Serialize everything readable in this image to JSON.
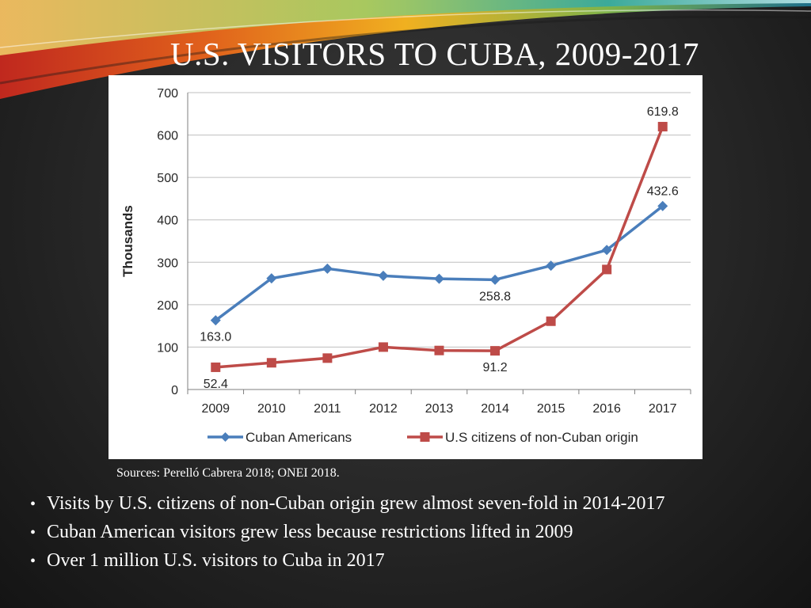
{
  "slide": {
    "title": "U.S. VISITORS TO CUBA, 2009-2017",
    "source": "Sources: Perelló Cabrera 2018; ONEI 2018.",
    "bullet_symbol": "•",
    "bullets": [
      "Visits by U.S. citizens of non-Cuban origin grew almost seven-fold in 2014-2017",
      "Cuban American visitors grew less because restrictions lifted in 2009",
      "Over 1 million U.S. visitors to Cuba in 2017"
    ]
  },
  "chart_data": {
    "type": "line",
    "title": "",
    "xlabel": "",
    "ylabel": "Thousands",
    "ylim": [
      0,
      700
    ],
    "yticks": [
      "0",
      "100",
      "200",
      "300",
      "400",
      "500",
      "600",
      "700"
    ],
    "categories": [
      "2009",
      "2010",
      "2011",
      "2012",
      "2013",
      "2014",
      "2015",
      "2016",
      "2017"
    ],
    "grid": true,
    "legend_position": "bottom",
    "series": [
      {
        "name": "Cuban Americans",
        "color": "#4a7ebb",
        "marker": "diamond",
        "values": [
          163.0,
          262,
          285,
          268,
          261,
          258.8,
          292,
          329,
          432.6
        ]
      },
      {
        "name": "U.S citizens of non-Cuban origin",
        "color": "#be4b48",
        "marker": "square",
        "values": [
          52.4,
          63,
          74,
          100,
          92,
          91.2,
          161,
          283,
          619.8
        ]
      }
    ],
    "data_labels": [
      {
        "series": 0,
        "index": 0,
        "text": "163.0"
      },
      {
        "series": 1,
        "index": 0,
        "text": "52.4"
      },
      {
        "series": 0,
        "index": 5,
        "text": "258.8"
      },
      {
        "series": 1,
        "index": 5,
        "text": "91.2"
      },
      {
        "series": 1,
        "index": 8,
        "text": "619.8"
      },
      {
        "series": 0,
        "index": 8,
        "text": "432.6"
      }
    ]
  }
}
